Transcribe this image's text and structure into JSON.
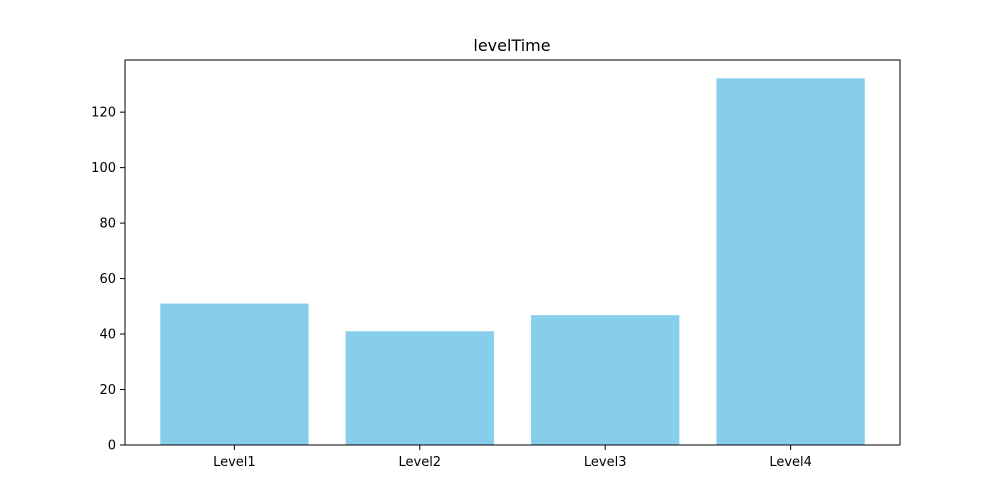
{
  "chart_data": {
    "type": "bar",
    "title": "levelTime",
    "xlabel": "",
    "ylabel": "",
    "categories": [
      "Level1",
      "Level2",
      "Level3",
      "Level4"
    ],
    "values": [
      51,
      41,
      46.8,
      132.2
    ],
    "ylim": [
      0,
      138.8
    ],
    "yticks": [
      0,
      20,
      40,
      60,
      80,
      100,
      120
    ],
    "bar_color": "#87CEEB",
    "grid": false,
    "legend": "none"
  }
}
